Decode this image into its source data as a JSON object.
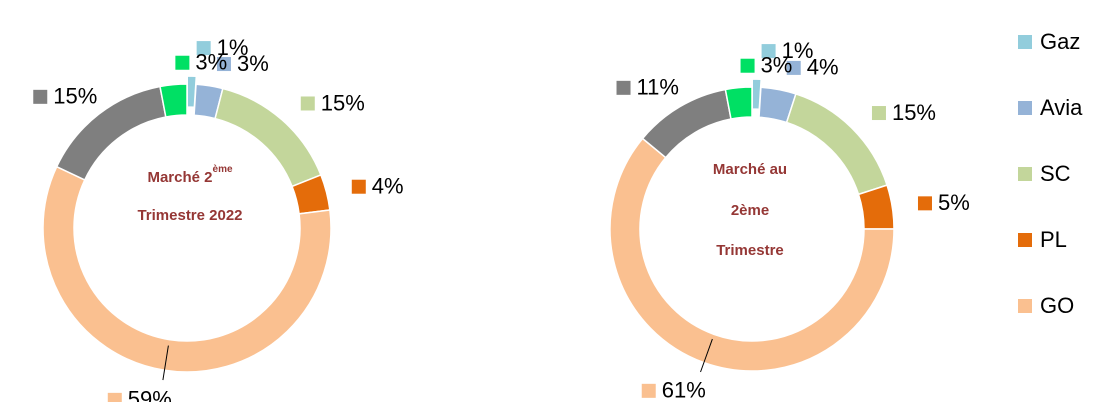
{
  "chart_data": [
    {
      "type": "donut",
      "center_text": [
        "Marché 2",
        "ème",
        "Trimestre 2022"
      ],
      "categories": [
        "Gaz",
        "Avia",
        "SC",
        "PL",
        "GO",
        null,
        null
      ],
      "values": [
        1,
        3,
        15,
        4,
        59,
        15,
        3
      ],
      "value_labels": [
        "1%",
        "3%",
        "15%",
        "4%",
        "59%",
        "15%",
        "3%"
      ],
      "colors": [
        "#92cddc",
        "#95b3d7",
        "#c3d69b",
        "#e46c0a",
        "#fac090",
        "#7f7f7f",
        "#00e064"
      ]
    },
    {
      "type": "donut",
      "center_text": [
        "Marché au",
        "2ème",
        "Trimestre"
      ],
      "categories": [
        "Gaz",
        "Avia",
        "SC",
        "PL",
        "GO",
        null,
        null
      ],
      "values": [
        1,
        4,
        15,
        5,
        61,
        11,
        3
      ],
      "value_labels": [
        "1%",
        "4%",
        "15%",
        "5%",
        "61%",
        "11%",
        "3%"
      ],
      "colors": [
        "#92cddc",
        "#95b3d7",
        "#c3d69b",
        "#e46c0a",
        "#fac090",
        "#7f7f7f",
        "#00e064"
      ],
      "legend": "right"
    }
  ]
}
